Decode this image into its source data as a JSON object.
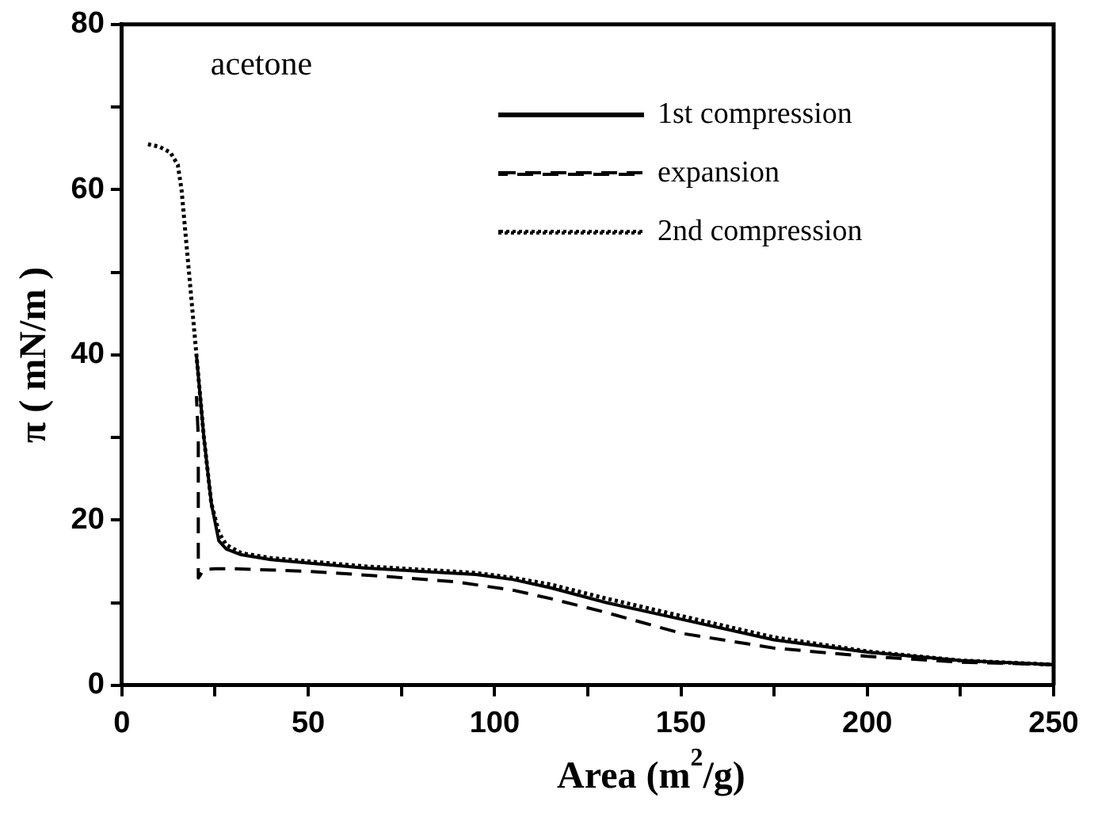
{
  "chart_data": {
    "type": "line",
    "xlabel": "Area (m$^{2}$/g)",
    "ylabel": "π ( mN/m )",
    "annotations": [
      "acetone"
    ],
    "xlim": [
      0,
      250
    ],
    "ylim": [
      0,
      80
    ],
    "xticks": [
      0,
      {
        "value": 25,
        "label": null
      },
      50,
      {
        "value": 75,
        "label": null
      },
      100,
      {
        "value": 125,
        "label": null
      },
      150,
      {
        "value": 175,
        "label": null
      },
      200,
      {
        "value": 225,
        "label": null
      },
      250
    ],
    "yticks": [
      0,
      {
        "value": 10,
        "label": null
      },
      20,
      {
        "value": 30,
        "label": null
      },
      40,
      {
        "value": 50,
        "label": null
      },
      60,
      {
        "value": 70,
        "label": null
      },
      80
    ],
    "grid": false,
    "legend": "top right",
    "marker": "none",
    "series": [
      {
        "name": "1st compression",
        "color": "#000000",
        "line_style": "solid",
        "x": [
          20,
          22,
          24,
          26,
          28,
          32,
          40,
          50,
          65,
          80,
          95,
          105,
          115,
          130,
          150,
          175,
          200,
          225,
          250
        ],
        "values": [
          40,
          30,
          22,
          17.5,
          16.5,
          15.8,
          15.2,
          14.8,
          14.2,
          13.8,
          13.4,
          12.8,
          11.8,
          10,
          8,
          5.5,
          4,
          3,
          2.5
        ]
      },
      {
        "name": "expansion",
        "color": "#000000",
        "line_style": "dashed",
        "x": [
          250,
          225,
          200,
          175,
          150,
          130,
          115,
          105,
          90,
          70,
          50,
          30,
          25,
          22,
          20.5,
          20.5,
          20
        ],
        "values": [
          2.5,
          2.8,
          3.5,
          4.5,
          6.3,
          8.8,
          10.5,
          11.5,
          12.5,
          13.2,
          13.8,
          14.1,
          14.1,
          14,
          13,
          30,
          35
        ]
      },
      {
        "name": "2nd compression",
        "color": "#000000",
        "line_style": "dotted",
        "x": [
          7,
          10,
          13,
          15,
          16,
          17,
          18,
          19,
          20,
          21,
          22,
          24,
          26,
          28,
          32,
          40,
          50,
          65,
          80,
          95,
          105,
          115,
          130,
          150,
          175,
          200,
          225,
          250
        ],
        "values": [
          65.5,
          65.2,
          64.5,
          63,
          60,
          55,
          50,
          45,
          40,
          35,
          30,
          22,
          18.5,
          17,
          16,
          15.4,
          15,
          14.4,
          14,
          13.6,
          13,
          12.2,
          10.5,
          8.4,
          5.8,
          4.1,
          3,
          2.5
        ]
      }
    ]
  }
}
